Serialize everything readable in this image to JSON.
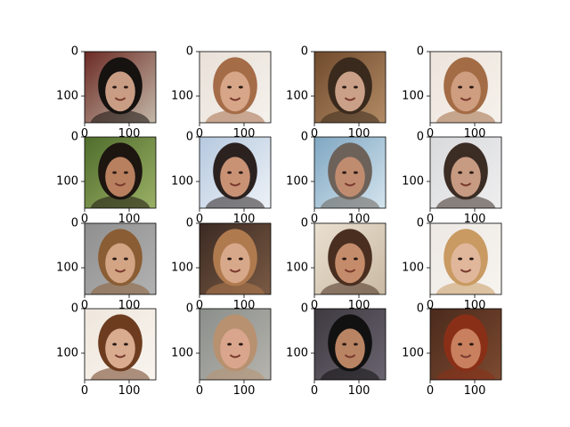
{
  "chart_data": {
    "type": "image-grid",
    "rows": 4,
    "cols": 4,
    "image_extent": {
      "x": [
        0,
        160
      ],
      "y": [
        0,
        160
      ]
    },
    "x_ticks": [
      0,
      100
    ],
    "y_ticks": [
      0,
      100
    ],
    "x_tick_labels": [
      "0",
      "100"
    ],
    "y_tick_labels": [
      "0",
      "100"
    ],
    "grid": false,
    "panels": [
      {
        "row": 0,
        "col": 0,
        "content": "face-photo",
        "tones": {
          "bg": "#6b2a24",
          "bg2": "#c4b8a8",
          "hair": "#151210",
          "skin": "#c99d84"
        }
      },
      {
        "row": 0,
        "col": 1,
        "content": "face-photo",
        "tones": {
          "bg": "#e9e1d9",
          "bg2": "#f5f1ec",
          "hair": "#a56c48",
          "skin": "#d7a587"
        }
      },
      {
        "row": 0,
        "col": 2,
        "content": "face-photo",
        "tones": {
          "bg": "#6f4a2c",
          "bg2": "#b38c66",
          "hair": "#3a2a1d",
          "skin": "#caa088"
        }
      },
      {
        "row": 0,
        "col": 3,
        "content": "face-photo",
        "tones": {
          "bg": "#ede4dc",
          "bg2": "#f6f1eb",
          "hair": "#a36c45",
          "skin": "#cf9d80"
        }
      },
      {
        "row": 1,
        "col": 0,
        "content": "face-photo",
        "tones": {
          "bg": "#4f6d2c",
          "bg2": "#9bb066",
          "hair": "#1d1510",
          "skin": "#b8805f"
        }
      },
      {
        "row": 1,
        "col": 1,
        "content": "face-photo",
        "tones": {
          "bg": "#b5c9df",
          "bg2": "#eef2f7",
          "hair": "#2b2220",
          "skin": "#c99275"
        }
      },
      {
        "row": 1,
        "col": 2,
        "content": "face-photo",
        "tones": {
          "bg": "#7fa7c2",
          "bg2": "#d4e4ee",
          "hair": "#6c625a",
          "skin": "#c08c70"
        }
      },
      {
        "row": 1,
        "col": 3,
        "content": "face-photo",
        "tones": {
          "bg": "#d9dadc",
          "bg2": "#eeeeef",
          "hair": "#3b2c24",
          "skin": "#c79a82"
        }
      },
      {
        "row": 2,
        "col": 0,
        "content": "face-photo",
        "tones": {
          "bg": "#8f8f8f",
          "bg2": "#b2b2b2",
          "hair": "#8a5d34",
          "skin": "#d3a585"
        }
      },
      {
        "row": 2,
        "col": 1,
        "content": "face-photo",
        "tones": {
          "bg": "#3b2a22",
          "bg2": "#7a5a44",
          "hair": "#b07a4f",
          "skin": "#d8a88a"
        }
      },
      {
        "row": 2,
        "col": 2,
        "content": "face-photo",
        "tones": {
          "bg": "#eae0d0",
          "bg2": "#c9b9a3",
          "hair": "#4a2f20",
          "skin": "#c48c6a"
        }
      },
      {
        "row": 2,
        "col": 3,
        "content": "face-photo",
        "tones": {
          "bg": "#ede8e3",
          "bg2": "#f7f4f0",
          "hair": "#c99a62",
          "skin": "#e0b79b"
        }
      },
      {
        "row": 3,
        "col": 0,
        "content": "face-photo",
        "tones": {
          "bg": "#efe7dd",
          "bg2": "#f8f4ee",
          "hair": "#6d3c1f",
          "skin": "#d9ab8f"
        }
      },
      {
        "row": 3,
        "col": 1,
        "content": "face-photo",
        "tones": {
          "bg": "#8a8e8a",
          "bg2": "#b6b4ae",
          "hair": "#b79170",
          "skin": "#d9a68d"
        }
      },
      {
        "row": 3,
        "col": 2,
        "content": "face-photo",
        "tones": {
          "bg": "#3e3a40",
          "bg2": "#6a6470",
          "hair": "#111111",
          "skin": "#b98463"
        }
      },
      {
        "row": 3,
        "col": 3,
        "content": "face-photo",
        "tones": {
          "bg": "#4a2a1c",
          "bg2": "#7d4a30",
          "hair": "#8a2f17",
          "skin": "#c8805e"
        }
      }
    ]
  }
}
